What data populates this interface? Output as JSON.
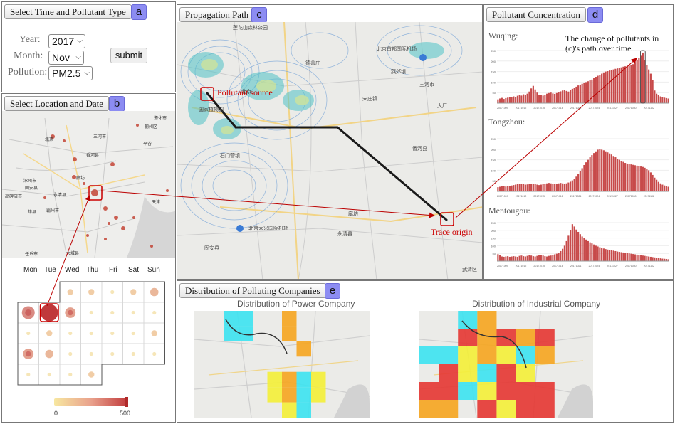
{
  "panel_a": {
    "title": "Select Time and Pollutant Type",
    "badge": "a",
    "year_label": "Year:",
    "year_value": "2017",
    "month_label": "Month:",
    "month_value": "Nov",
    "pollution_label": "Pollution:",
    "pollution_value": "PM2.5",
    "submit_label": "submit"
  },
  "panel_b": {
    "title": "Select Location and Date",
    "badge": "b",
    "weekdays": [
      "Mon",
      "Tue",
      "Wed",
      "Thu",
      "Fri",
      "Sat",
      "Sun"
    ],
    "legend_min": "0",
    "legend_max": "500",
    "calendar_sizes": [
      [
        null,
        null,
        2,
        2,
        1,
        2,
        3
      ],
      [
        5,
        7,
        4,
        1,
        1,
        1,
        1
      ],
      [
        1,
        2,
        1,
        1,
        1,
        1,
        2
      ],
      [
        4,
        3,
        1,
        1,
        1,
        1,
        1
      ],
      [
        1,
        1,
        1,
        2,
        null,
        null,
        null
      ]
    ],
    "map_labels": [
      "遵化市",
      "三河市",
      "北京",
      "平谷",
      "香河县",
      "廊坊",
      "涿州市",
      "固安县",
      "永清县",
      "高碑店市",
      "霸州市",
      "雄县",
      "任丘市",
      "大城县",
      "天津",
      "蓟州区"
    ]
  },
  "panel_c": {
    "title": "Propagation Path",
    "badge": "c",
    "source_label": "Pollutant source",
    "origin_label": "Trace origin",
    "map_labels": [
      "莲花山森林公园",
      "国家植物园",
      "北京首都国际机场",
      "北京大兴国际机场",
      "廊坊",
      "三河市",
      "香河县",
      "永清县",
      "北京",
      "武清区",
      "大厂",
      "固安县",
      "燕郊镇",
      "石门营镇",
      "宋庄镇",
      "德善庄"
    ]
  },
  "panel_d": {
    "title": "Pollutant Concentration",
    "badge": "d",
    "annotation": "The change of pollutants in (c)'s path over time",
    "chart_data": [
      {
        "type": "bar",
        "title": "Wuqing:",
        "ylim": [
          0,
          250
        ],
        "yticks": [
          "250",
          "200",
          "150",
          "100",
          "50"
        ],
        "xticks": [
          "20171009",
          "20171012",
          "20171015",
          "20171018",
          "20171021",
          "20171024",
          "20171027",
          "20171030",
          "20171102"
        ],
        "values": [
          18,
          22,
          25,
          20,
          24,
          26,
          28,
          27,
          32,
          30,
          35,
          38,
          36,
          42,
          40,
          45,
          55,
          70,
          82,
          65,
          50,
          40,
          38,
          36,
          40,
          45,
          48,
          50,
          46,
          44,
          48,
          52,
          56,
          60,
          62,
          58,
          55,
          62,
          68,
          72,
          78,
          84,
          88,
          92,
          96,
          100,
          104,
          108,
          112,
          120,
          125,
          130,
          134,
          140,
          146,
          150,
          152,
          155,
          158,
          160,
          163,
          165,
          168,
          170,
          173,
          175,
          176,
          178,
          180,
          185,
          195,
          205,
          215,
          225,
          240,
          205,
          180,
          160,
          140,
          110,
          60,
          45,
          38,
          32,
          28,
          26,
          24,
          22
        ]
      },
      {
        "type": "bar",
        "title": "Tongzhou:",
        "ylim": [
          0,
          250
        ],
        "yticks": [
          "250",
          "200",
          "150",
          "100",
          "50"
        ],
        "xticks": [
          "20171009",
          "20171012",
          "20171015",
          "20171018",
          "20171021",
          "20171024",
          "20171027",
          "20171030",
          "20171102"
        ],
        "values": [
          20,
          22,
          24,
          25,
          23,
          24,
          26,
          28,
          30,
          32,
          34,
          35,
          36,
          34,
          32,
          33,
          34,
          35,
          36,
          34,
          32,
          30,
          32,
          34,
          36,
          38,
          40,
          38,
          36,
          35,
          36,
          38,
          40,
          38,
          36,
          38,
          42,
          46,
          52,
          60,
          70,
          82,
          95,
          110,
          125,
          138,
          150,
          162,
          172,
          182,
          190,
          198,
          202,
          198,
          195,
          190,
          185,
          180,
          175,
          168,
          162,
          155,
          150,
          145,
          140,
          135,
          132,
          130,
          128,
          126,
          124,
          122,
          120,
          118,
          116,
          112,
          108,
          100,
          90,
          78,
          65,
          55,
          45,
          38,
          32,
          28,
          25,
          22
        ]
      },
      {
        "type": "bar",
        "title": "Mentougou:",
        "ylim": [
          0,
          250
        ],
        "yticks": [
          "250",
          "200",
          "150",
          "100",
          "50"
        ],
        "xticks": [
          "20171009",
          "20171012",
          "20171015",
          "20171018",
          "20171021",
          "20171024",
          "20171027",
          "20171030",
          "20171102"
        ],
        "values": [
          45,
          38,
          30,
          28,
          30,
          32,
          28,
          30,
          32,
          30,
          28,
          34,
          36,
          32,
          30,
          34,
          38,
          36,
          32,
          30,
          34,
          38,
          40,
          36,
          32,
          30,
          34,
          36,
          40,
          44,
          48,
          55,
          65,
          80,
          100,
          130,
          165,
          200,
          240,
          225,
          205,
          190,
          175,
          160,
          150,
          140,
          130,
          122,
          115,
          108,
          100,
          95,
          90,
          86,
          82,
          78,
          75,
          72,
          70,
          68,
          65,
          62,
          60,
          58,
          56,
          54,
          52,
          50,
          48,
          46,
          44,
          42,
          40,
          38,
          36,
          34,
          32,
          30,
          28,
          26,
          24,
          22,
          20,
          18,
          16,
          15,
          14,
          12
        ]
      }
    ]
  },
  "panel_e": {
    "title": "Distribution of Polluting Companies",
    "badge": "e",
    "power_title": "Distribution of Power Company",
    "industrial_title": "Distribution of Industrial Company"
  },
  "colors": {
    "accent": "#8c8cf2",
    "bar": "#c74a4a",
    "path": "#1a1a1a",
    "annotation": "#c00000",
    "cyan": "#3fe3f0",
    "orange": "#f5a623",
    "yellow": "#f3ef3b",
    "red": "#e53935"
  }
}
